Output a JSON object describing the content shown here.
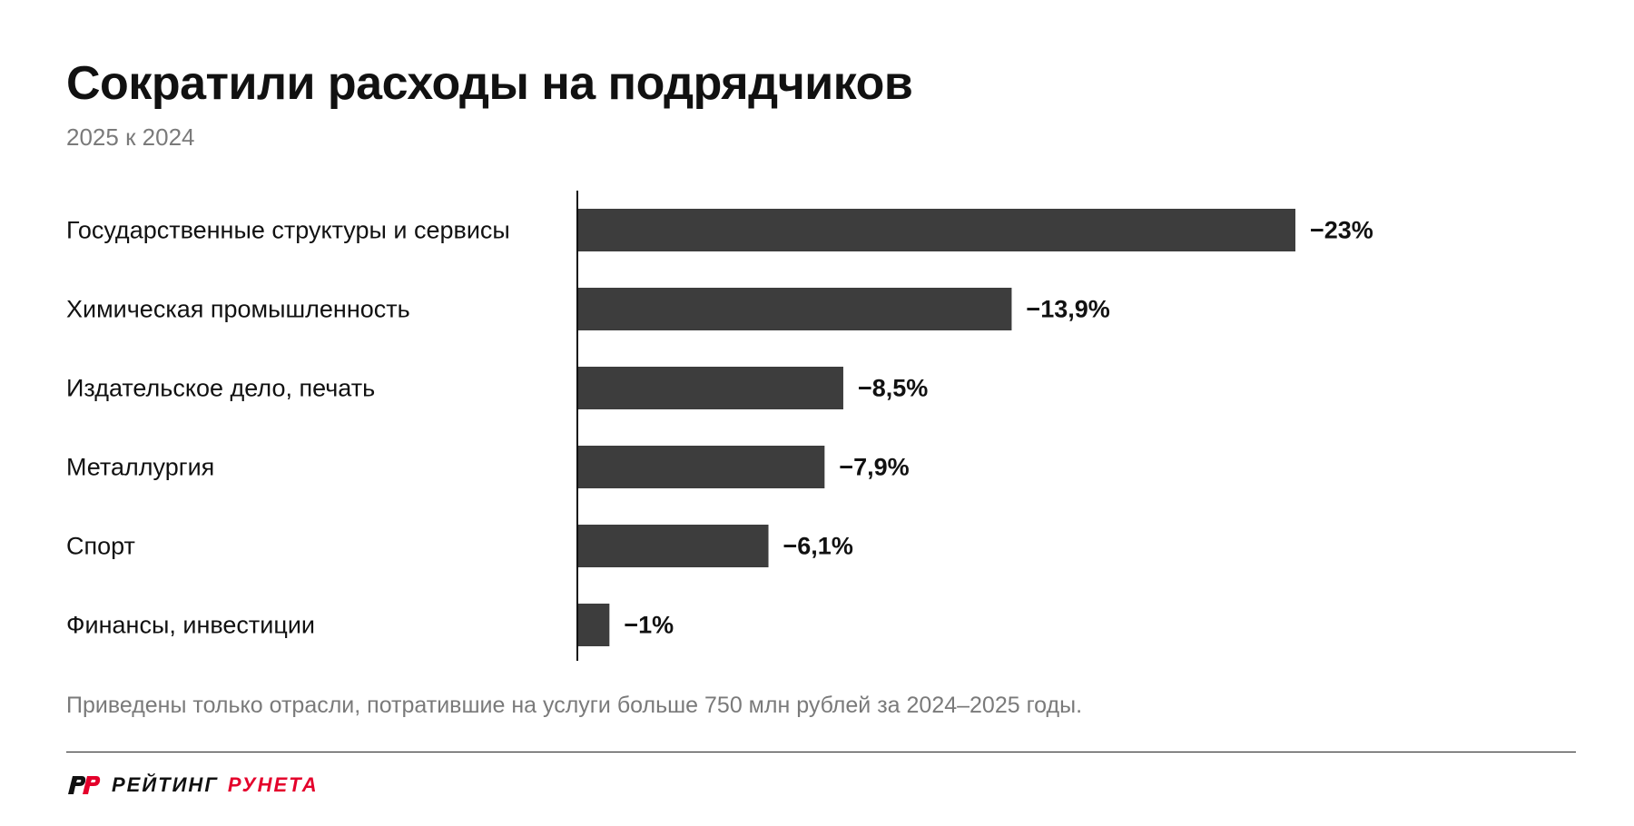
{
  "header": {
    "title": "Сократили расходы на подрядчиков",
    "subtitle": "2025 к 2024"
  },
  "chart_data": {
    "type": "bar",
    "orientation": "horizontal",
    "categories": [
      "Государственные структуры и сервисы",
      "Химическая промышленность",
      "Издательское дело, печать",
      "Металлургия",
      "Спорт",
      "Финансы, инвестиции"
    ],
    "values": [
      -23,
      -13.9,
      -8.5,
      -7.9,
      -6.1,
      -1
    ],
    "value_labels": [
      "−23%",
      "−13,9%",
      "−8,5%",
      "−7,9%",
      "−6,1%",
      "−1%"
    ],
    "xlim": [
      0,
      -23
    ],
    "grid": false,
    "bar_color": "#3d3d3d"
  },
  "footer": {
    "note": "Приведены только отрасли, потратившие на услуги больше 750 млн рублей за 2024–2025 годы.",
    "brand_word1": "РЕЙТИНГ",
    "brand_word2": "РУНЕТА",
    "brand_icon": "rr-logo-icon",
    "brand_color": "#e4002b"
  }
}
